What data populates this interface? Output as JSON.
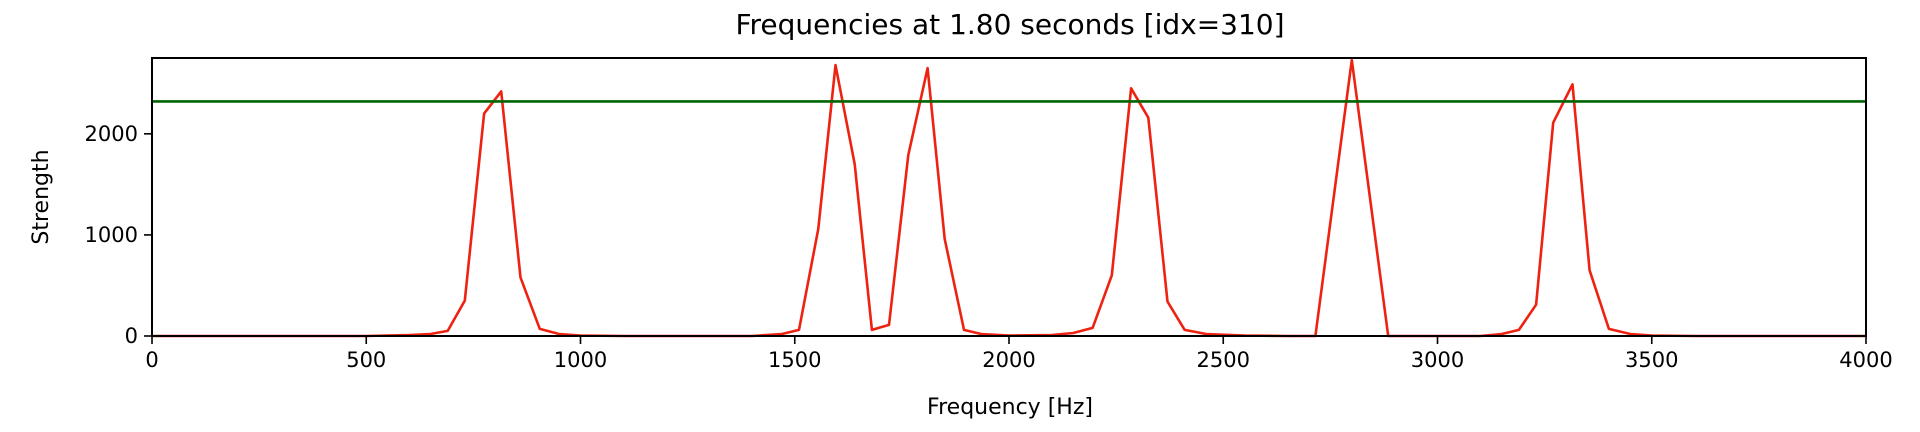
{
  "chart_data": {
    "type": "line",
    "title": "Frequencies at 1.80 seconds [idx=310]",
    "xlabel": "Frequency [Hz]",
    "ylabel": "Strength",
    "xlim": [
      0,
      4000
    ],
    "ylim": [
      0,
      2750
    ],
    "xticks": [
      0,
      500,
      1000,
      1500,
      2000,
      2500,
      3000,
      3500,
      4000
    ],
    "yticks": [
      0,
      1000,
      2000
    ],
    "grid": false,
    "series": [
      {
        "color": "#ee2211",
        "x": [
          0,
          100,
          200,
          300,
          400,
          500,
          600,
          650,
          690,
          730,
          775,
          815,
          860,
          905,
          950,
          1000,
          1100,
          1200,
          1300,
          1400,
          1470,
          1510,
          1555,
          1595,
          1640,
          1680,
          1720,
          1765,
          1810,
          1850,
          1895,
          1935,
          2000,
          2100,
          2150,
          2195,
          2240,
          2285,
          2325,
          2370,
          2410,
          2460,
          2550,
          2650,
          2715,
          2800,
          2885,
          3000,
          3100,
          3150,
          3190,
          3230,
          3270,
          3315,
          3355,
          3400,
          3450,
          3500,
          3600,
          3800,
          4000
        ],
        "y": [
          0,
          0,
          0,
          0,
          0,
          0,
          10,
          20,
          50,
          350,
          2200,
          2420,
          580,
          70,
          20,
          5,
          0,
          0,
          0,
          0,
          20,
          60,
          1060,
          2680,
          1700,
          60,
          110,
          1790,
          2650,
          960,
          60,
          20,
          5,
          10,
          30,
          80,
          600,
          2450,
          2160,
          340,
          60,
          20,
          5,
          0,
          0,
          2730,
          0,
          0,
          0,
          20,
          60,
          310,
          2110,
          2490,
          650,
          70,
          20,
          5,
          0,
          0,
          0
        ]
      }
    ],
    "threshold": {
      "y": 2320,
      "color": "#006400"
    }
  }
}
